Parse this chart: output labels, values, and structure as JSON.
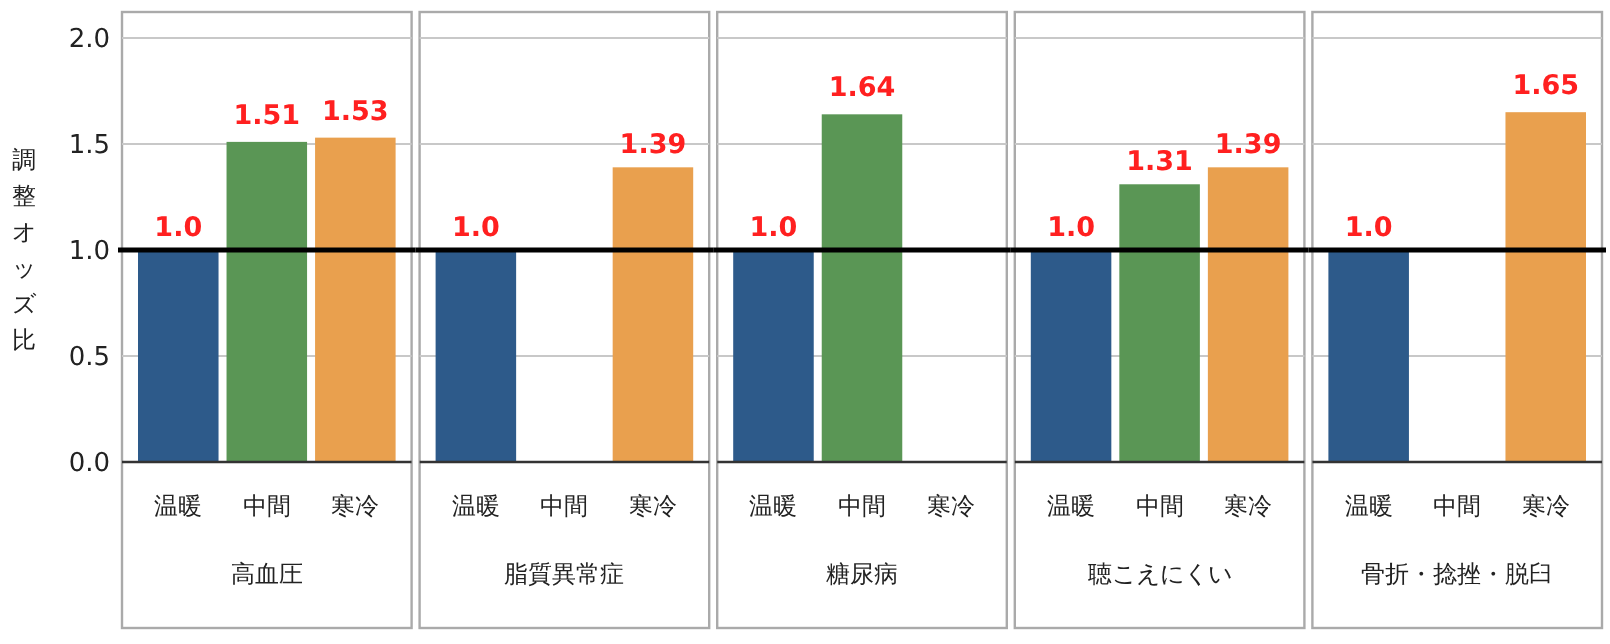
{
  "chart_data": [
    {
      "type": "bar",
      "categories": [
        "温暖",
        "中間",
        "寒冷"
      ],
      "xlabel": "高血圧",
      "ylabel": "調整オッズ比",
      "values": [
        1.0,
        1.51,
        1.53
      ],
      "value_labels": [
        "1.0",
        "1.51",
        "1.53"
      ],
      "colors": [
        "#2d5a8a",
        "#5a9655",
        "#e9a04e"
      ],
      "ylim": [
        0,
        2.0
      ],
      "yticks": [
        {
          "value": 0,
          "label": "0.0"
        },
        {
          "value": 0.5,
          "label": "0.5"
        },
        {
          "value": 1.0,
          "label": "1.0"
        },
        {
          "value": 1.5,
          "label": "1.5"
        },
        {
          "value": 2.0,
          "label": "2.0"
        }
      ],
      "grid": "y",
      "ref_lines": [
        {
          "axis": "y",
          "value": 1.0,
          "color": "#000000"
        }
      ]
    },
    {
      "type": "bar",
      "categories": [
        "温暖",
        "中間",
        "寒冷"
      ],
      "xlabel": "脂質異常症",
      "values": [
        1.0,
        null,
        1.39
      ],
      "value_labels": [
        "1.0",
        null,
        "1.39"
      ],
      "colors": [
        "#2d5a8a",
        null,
        "#e9a04e"
      ],
      "ylim": [
        0,
        2.0
      ],
      "yticks": [
        {
          "value": 0,
          "label": null
        },
        {
          "value": 0.5,
          "label": null
        },
        {
          "value": 1.0,
          "label": null
        },
        {
          "value": 1.5,
          "label": null
        },
        {
          "value": 2.0,
          "label": null
        }
      ],
      "tick_labels": "x",
      "grid": "y",
      "ref_lines": [
        {
          "axis": "y",
          "value": 1.0,
          "color": "#000000"
        }
      ]
    },
    {
      "type": "bar",
      "categories": [
        "温暖",
        "中間",
        "寒冷"
      ],
      "xlabel": "糖尿病",
      "values": [
        1.0,
        1.64,
        null
      ],
      "value_labels": [
        "1.0",
        "1.64",
        null
      ],
      "colors": [
        "#2d5a8a",
        "#5a9655",
        null
      ],
      "ylim": [
        0,
        2.0
      ],
      "yticks": [
        {
          "value": 0,
          "label": null
        },
        {
          "value": 0.5,
          "label": null
        },
        {
          "value": 1.0,
          "label": null
        },
        {
          "value": 1.5,
          "label": null
        },
        {
          "value": 2.0,
          "label": null
        }
      ],
      "tick_labels": "x",
      "grid": "y",
      "ref_lines": [
        {
          "axis": "y",
          "value": 1.0,
          "color": "#000000"
        }
      ]
    },
    {
      "type": "bar",
      "categories": [
        "温暖",
        "中間",
        "寒冷"
      ],
      "xlabel": "聴こえにくい",
      "values": [
        1.0,
        1.31,
        1.39
      ],
      "value_labels": [
        "1.0",
        "1.31",
        "1.39"
      ],
      "colors": [
        "#2d5a8a",
        "#5a9655",
        "#e9a04e"
      ],
      "ylim": [
        0,
        2.0
      ],
      "yticks": [
        {
          "value": 0,
          "label": null
        },
        {
          "value": 0.5,
          "label": null
        },
        {
          "value": 1.0,
          "label": null
        },
        {
          "value": 1.5,
          "label": null
        },
        {
          "value": 2.0,
          "label": null
        }
      ],
      "tick_labels": "x",
      "grid": "y",
      "ref_lines": [
        {
          "axis": "y",
          "value": 1.0,
          "color": "#000000"
        }
      ]
    },
    {
      "type": "bar",
      "categories": [
        "温暖",
        "中間",
        "寒冷"
      ],
      "xlabel": "骨折・捻挫・脱臼",
      "values": [
        1.0,
        null,
        1.65
      ],
      "value_labels": [
        "1.0",
        null,
        "1.65"
      ],
      "colors": [
        "#2d5a8a",
        null,
        "#e9a04e"
      ],
      "ylim": [
        0,
        2.0
      ],
      "yticks": [
        {
          "value": 0,
          "label": null
        },
        {
          "value": 0.5,
          "label": null
        },
        {
          "value": 1.0,
          "label": null
        },
        {
          "value": 1.5,
          "label": null
        },
        {
          "value": 2.0,
          "label": null
        }
      ],
      "tick_labels": "x",
      "grid": "y",
      "ref_lines": [
        {
          "axis": "y",
          "value": 1.0,
          "color": "#000000"
        }
      ]
    }
  ]
}
